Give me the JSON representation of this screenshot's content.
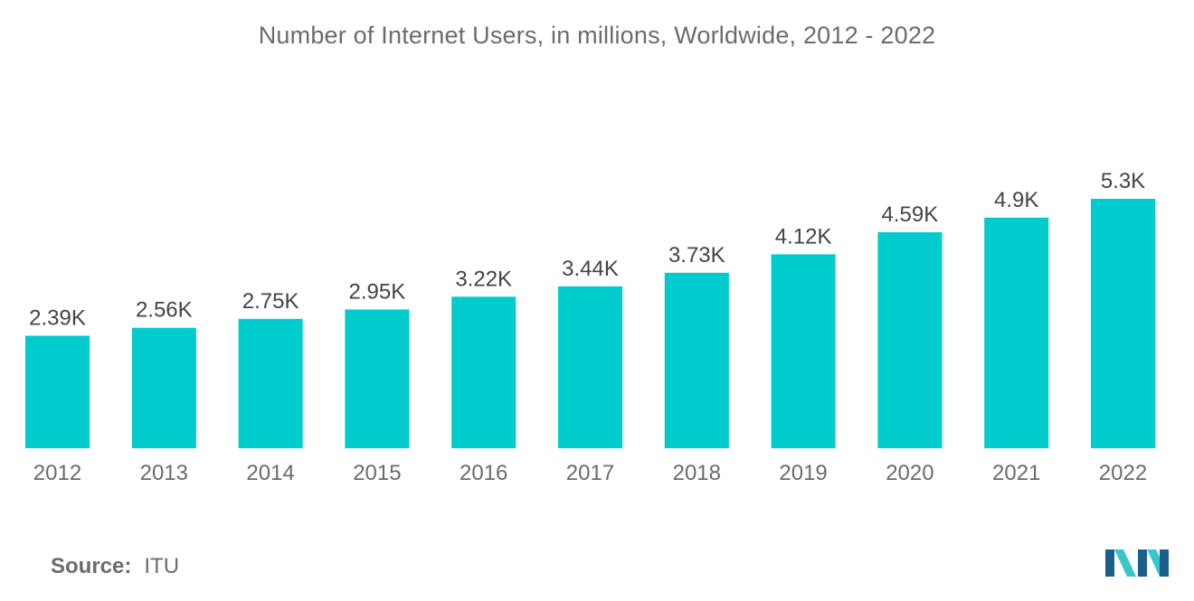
{
  "chart_data": {
    "type": "bar",
    "title": "Number of Internet Users, in millions, Worldwide, 2012 - 2022",
    "xlabel": "",
    "ylabel": "",
    "categories": [
      "2012",
      "2013",
      "2014",
      "2015",
      "2016",
      "2017",
      "2018",
      "2019",
      "2020",
      "2021",
      "2022"
    ],
    "values": [
      2.39,
      2.56,
      2.75,
      2.95,
      3.22,
      3.44,
      3.73,
      4.12,
      4.59,
      4.9,
      5.3
    ],
    "value_labels": [
      "2.39K",
      "2.56K",
      "2.75K",
      "2.95K",
      "3.22K",
      "3.44K",
      "3.73K",
      "4.12K",
      "4.59K",
      "4.9K",
      "5.3K"
    ],
    "ylim": [
      0,
      5.3
    ],
    "grid": false,
    "legend": "none",
    "bar_color": "#00cccd"
  },
  "source": {
    "label": "Source:",
    "value": "ITU"
  },
  "colors": {
    "text": "#6b6b6b",
    "value_text": "#444444",
    "logo_dark": "#1d5f8c",
    "logo_light": "#39c6c8"
  }
}
